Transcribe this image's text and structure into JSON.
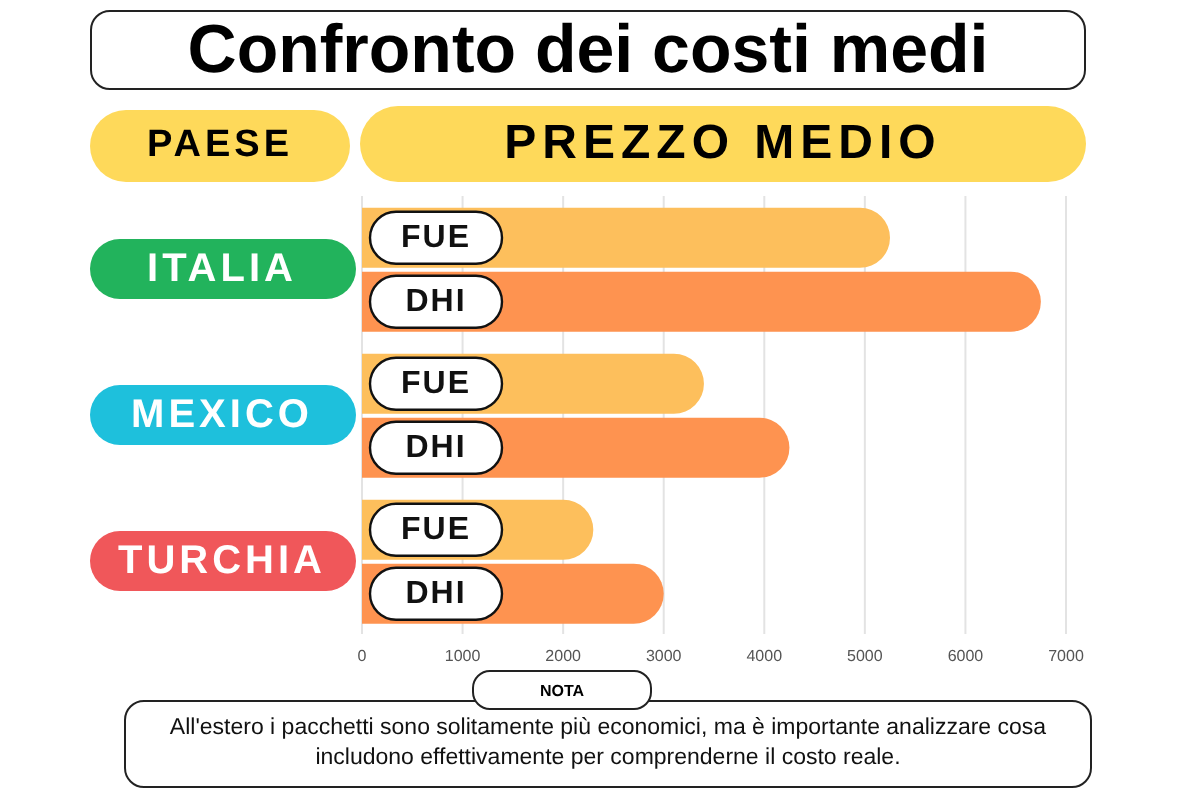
{
  "chart_data": {
    "type": "bar",
    "orientation": "horizontal",
    "title": "Confronto dei costi medi",
    "ylabel": "PAESE",
    "xlabel": "PREZZO MEDIO",
    "categories": [
      "ITALIA",
      "MEXICO",
      "TURCHIA"
    ],
    "series": [
      {
        "name": "FUE",
        "color": "#fdbf5c",
        "values": [
          5250,
          3400,
          2300
        ]
      },
      {
        "name": "DHI",
        "color": "#fe9350",
        "values": [
          6750,
          4250,
          3000
        ]
      }
    ],
    "xlim": [
      0,
      7000
    ],
    "xticks": [
      0,
      1000,
      2000,
      3000,
      4000,
      5000,
      6000,
      7000
    ],
    "grid": "x",
    "legend": false,
    "annotations": [
      "NOTA",
      "All'estero i pacchetti sono solitamente più economici, ma è importante analizzare cosa includono effettivamente per comprenderne il costo reale."
    ]
  }
}
